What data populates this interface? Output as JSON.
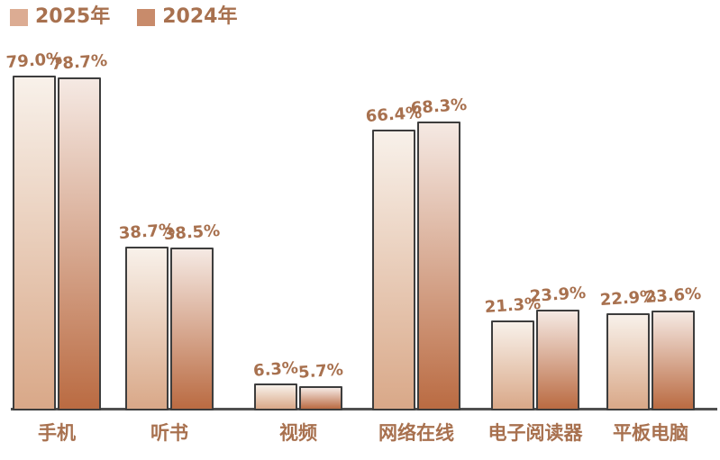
{
  "legend": [
    {
      "label": "2025年",
      "color": "#dcac93"
    },
    {
      "label": "2024年",
      "color": "#c88b6b"
    }
  ],
  "chart_data": {
    "type": "bar",
    "title": "",
    "categories": [
      "手机",
      "听书",
      "视频",
      "网络在线",
      "电子阅读器",
      "平板电脑"
    ],
    "series": [
      {
        "name": "2025年",
        "values": [
          79.0,
          38.7,
          6.3,
          66.4,
          21.3,
          22.9
        ],
        "labels": [
          "79.0%",
          "38.7%",
          "6.3%",
          "66.4%",
          "21.3%",
          "22.9%"
        ],
        "gradient_top": "#f8f1ea",
        "gradient_bottom": "#d9a888"
      },
      {
        "name": "2024年",
        "values": [
          78.7,
          38.5,
          5.7,
          68.3,
          23.9,
          23.6
        ],
        "labels": [
          "78.7%",
          "38.5%",
          "5.7%",
          "68.3%",
          "23.9%",
          "23.6%"
        ],
        "gradient_top": "#f5e9e3",
        "gradient_bottom": "#ba6b42"
      }
    ],
    "xlabel": "",
    "ylabel": "",
    "ylim": [
      0,
      85
    ],
    "value_suffix": "%",
    "grid": false,
    "legend_position": "top-left",
    "label_color": "#a8714f",
    "axis_line_color": "#505050",
    "bar_border_color": "#3d3d3d"
  }
}
